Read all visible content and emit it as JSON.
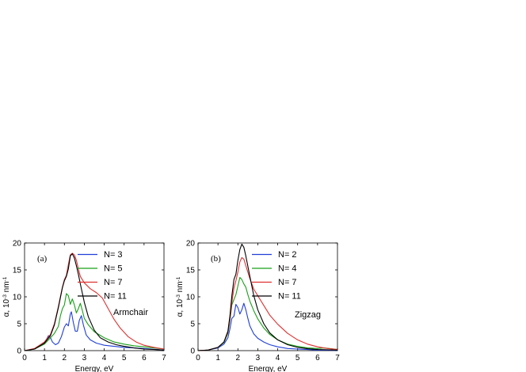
{
  "chart_data": [
    {
      "type": "line",
      "panel_label": "(a)",
      "annotation": "Armchair",
      "xlabel": "Energy, eV",
      "ylabel": {
        "main": "α, 10",
        "exp1": "-3",
        "mid": " nm",
        "exp2": "-1"
      },
      "xlim": [
        0,
        7
      ],
      "ylim": [
        0,
        20
      ],
      "x_ticks": [
        0,
        1,
        2,
        3,
        4,
        5,
        6,
        7
      ],
      "y_ticks": [
        0,
        5,
        10,
        15,
        20
      ],
      "x_tick_labels": [
        "0",
        "1",
        "2",
        "3",
        "4",
        "5",
        "6",
        "7"
      ],
      "y_tick_labels": [
        "0",
        "5",
        "10",
        "15",
        "20"
      ],
      "grid": false,
      "legend_position": "top-right",
      "series": [
        {
          "name": "N= 3",
          "color": "#1f3fd8",
          "x": [
            0,
            0.5,
            0.9,
            1.1,
            1.2,
            1.3,
            1.4,
            1.55,
            1.7,
            1.85,
            2.0,
            2.1,
            2.2,
            2.3,
            2.35,
            2.45,
            2.55,
            2.65,
            2.75,
            2.85,
            2.95,
            3.1,
            3.3,
            3.6,
            4.0,
            4.5,
            5.0,
            5.5,
            6.0,
            7.0
          ],
          "y": [
            0,
            0.3,
            1.1,
            2.1,
            2.8,
            2.4,
            1.6,
            1.1,
            1.4,
            2.6,
            4.4,
            5.0,
            4.6,
            6.8,
            7.2,
            5.2,
            3.6,
            3.6,
            5.6,
            6.5,
            4.8,
            2.9,
            2.0,
            1.4,
            1.0,
            0.8,
            0.6,
            0.5,
            0.4,
            0.1
          ]
        },
        {
          "name": "N= 5",
          "color": "#18a018",
          "x": [
            0,
            0.5,
            1.0,
            1.3,
            1.5,
            1.7,
            1.8,
            1.9,
            2.0,
            2.1,
            2.2,
            2.3,
            2.4,
            2.5,
            2.6,
            2.7,
            2.8,
            2.9,
            3.0,
            3.2,
            3.5,
            4.0,
            4.5,
            5.0,
            5.5,
            6.0,
            6.5,
            7.0
          ],
          "y": [
            0,
            0.3,
            1.2,
            2.4,
            3.2,
            4.5,
            6.5,
            7.8,
            8.5,
            10.6,
            10.2,
            8.6,
            9.6,
            8.5,
            7.0,
            7.8,
            8.8,
            7.5,
            6.0,
            4.8,
            3.5,
            2.4,
            1.6,
            1.2,
            0.9,
            0.7,
            0.5,
            0.3
          ]
        },
        {
          "name": "N= 7",
          "color": "#e03030",
          "x": [
            0,
            0.5,
            1.0,
            1.3,
            1.5,
            1.7,
            1.9,
            2.0,
            2.1,
            2.2,
            2.3,
            2.4,
            2.5,
            2.6,
            2.7,
            2.8,
            3.0,
            3.3,
            3.6,
            3.9,
            4.2,
            4.5,
            4.8,
            5.2,
            5.6,
            6.0,
            6.5,
            7.0
          ],
          "y": [
            0,
            0.4,
            1.6,
            3.0,
            5.0,
            8.2,
            11.8,
            13.2,
            14.0,
            16.0,
            17.8,
            18.1,
            17.8,
            16.8,
            15.2,
            13.8,
            12.6,
            11.5,
            10.8,
            9.8,
            7.8,
            5.8,
            4.2,
            2.6,
            1.6,
            1.0,
            0.6,
            0.3
          ]
        },
        {
          "name": "N= 11",
          "color": "#000000",
          "x": [
            0,
            0.5,
            1.0,
            1.3,
            1.5,
            1.7,
            1.9,
            2.0,
            2.1,
            2.2,
            2.3,
            2.4,
            2.5,
            2.6,
            2.7,
            2.8,
            3.0,
            3.2,
            3.5,
            3.8,
            4.2,
            4.6,
            5.0,
            5.5,
            6.0,
            6.5,
            7.0
          ],
          "y": [
            0,
            0.3,
            1.4,
            2.8,
            4.8,
            8.0,
            11.7,
            13.0,
            13.8,
            15.2,
            17.6,
            18.0,
            17.2,
            15.8,
            14.2,
            12.4,
            9.0,
            6.3,
            3.8,
            2.4,
            1.6,
            1.1,
            0.8,
            0.5,
            0.3,
            0.2,
            0.1
          ]
        }
      ]
    },
    {
      "type": "line",
      "panel_label": "(b)",
      "annotation": "Zigzag",
      "xlabel": "Energy, eV",
      "ylabel": {
        "main": "α, 10",
        "exp1": "-3",
        "mid": " nm",
        "exp2": "-1"
      },
      "xlim": [
        0,
        7
      ],
      "ylim": [
        0,
        20
      ],
      "x_ticks": [
        0,
        1,
        2,
        3,
        4,
        5,
        6,
        7
      ],
      "y_ticks": [
        0,
        5,
        10,
        15,
        20
      ],
      "x_tick_labels": [
        "0",
        "1",
        "2",
        "3",
        "4",
        "5",
        "6",
        "7"
      ],
      "y_tick_labels": [
        "0",
        "5",
        "10",
        "15",
        "20"
      ],
      "grid": false,
      "legend_position": "top-right",
      "series": [
        {
          "name": "N= 2",
          "color": "#1f3fd8",
          "x": [
            0,
            0.5,
            1.0,
            1.3,
            1.5,
            1.6,
            1.7,
            1.8,
            1.9,
            2.0,
            2.1,
            2.2,
            2.3,
            2.4,
            2.5,
            2.6,
            2.8,
            3.0,
            3.3,
            3.6,
            4.0,
            4.5,
            5.0,
            5.5,
            6.0,
            7.0
          ],
          "y": [
            0,
            0.1,
            0.5,
            1.2,
            2.4,
            4.0,
            6.0,
            6.4,
            8.6,
            8.0,
            6.8,
            7.6,
            8.8,
            7.6,
            6.0,
            4.6,
            3.1,
            2.3,
            1.6,
            1.1,
            0.7,
            0.4,
            0.3,
            0.2,
            0.1,
            0.05
          ]
        },
        {
          "name": "N= 4",
          "color": "#18a018",
          "x": [
            0,
            0.5,
            1.0,
            1.3,
            1.5,
            1.6,
            1.7,
            1.8,
            1.9,
            2.0,
            2.1,
            2.2,
            2.3,
            2.4,
            2.5,
            2.6,
            2.8,
            3.0,
            3.3,
            3.6,
            4.0,
            4.5,
            5.0,
            5.5,
            6.0,
            6.3,
            6.6,
            7.0
          ],
          "y": [
            0,
            0.1,
            0.6,
            1.5,
            3.2,
            5.5,
            8.5,
            9.5,
            10.4,
            12.0,
            13.6,
            13.2,
            12.4,
            11.8,
            10.4,
            9.2,
            7.4,
            5.9,
            4.2,
            3.0,
            2.0,
            1.2,
            0.8,
            0.5,
            0.4,
            0.5,
            0.4,
            0.2
          ]
        },
        {
          "name": "N= 7",
          "color": "#e03030",
          "x": [
            0,
            0.5,
            1.0,
            1.3,
            1.5,
            1.6,
            1.7,
            1.8,
            1.9,
            2.0,
            2.1,
            2.2,
            2.3,
            2.4,
            2.6,
            2.8,
            3.0,
            3.3,
            3.6,
            4.0,
            4.5,
            5.0,
            5.5,
            6.0,
            6.5,
            7.0
          ],
          "y": [
            0,
            0.1,
            0.6,
            1.6,
            3.4,
            5.8,
            9.0,
            11.6,
            13.0,
            14.6,
            16.5,
            17.3,
            17.0,
            15.8,
            13.4,
            11.4,
            10.2,
            8.4,
            6.6,
            4.9,
            3.2,
            2.0,
            1.2,
            0.7,
            0.4,
            0.2
          ]
        },
        {
          "name": "N= 11",
          "color": "#000000",
          "x": [
            0,
            0.5,
            1.0,
            1.3,
            1.5,
            1.6,
            1.7,
            1.8,
            1.9,
            2.0,
            2.1,
            2.2,
            2.3,
            2.4,
            2.6,
            2.8,
            3.0,
            3.3,
            3.6,
            4.0,
            4.5,
            5.0,
            5.5,
            6.0,
            7.0
          ],
          "y": [
            0,
            0.1,
            0.6,
            1.6,
            3.6,
            6.4,
            10.2,
            13.2,
            14.2,
            16.8,
            18.8,
            19.8,
            19.2,
            17.6,
            13.8,
            10.2,
            7.6,
            5.0,
            3.3,
            2.0,
            1.1,
            0.6,
            0.35,
            0.2,
            0.1
          ]
        }
      ]
    }
  ]
}
